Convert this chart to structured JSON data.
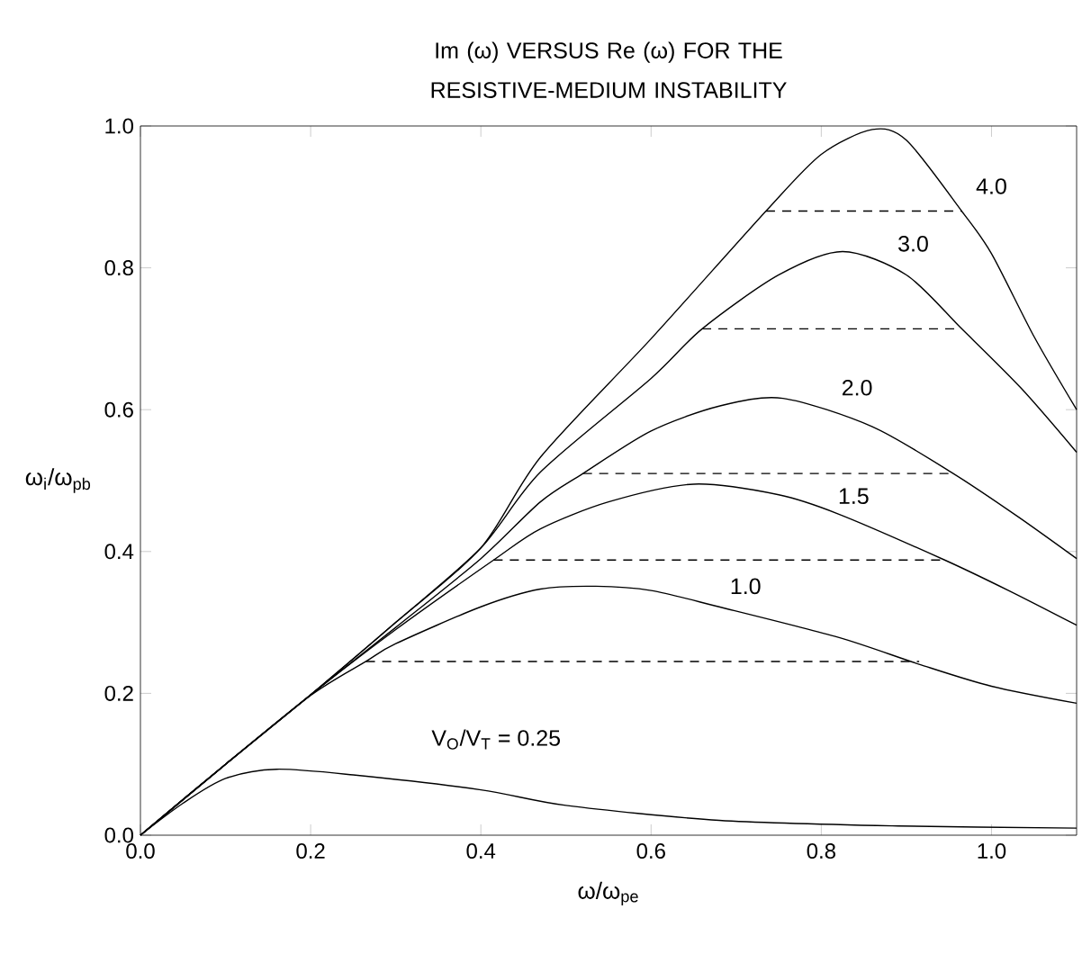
{
  "chart_data": {
    "type": "line",
    "title": "Im (ω) VERSUS Re (ω) FOR THE RESISTIVE-MEDIUM INSTABILITY",
    "xlabel": "ω/ω$_{pe}$",
    "ylabel": "ω$_{i}$/ω$_{pb}$",
    "xlim": [
      0,
      1.1
    ],
    "ylim": [
      0,
      1.0
    ],
    "xticks": [
      {
        "value": 0,
        "label": "0.0"
      },
      {
        "value": 0.2,
        "label": "0.2"
      },
      {
        "value": 0.4,
        "label": "0.4"
      },
      {
        "value": 0.6,
        "label": "0.6"
      },
      {
        "value": 0.8,
        "label": "0.8"
      },
      {
        "value": 1.0,
        "label": "1.0"
      }
    ],
    "yticks": [
      {
        "value": 0,
        "label": "0.0"
      },
      {
        "value": 0.2,
        "label": "0.2"
      },
      {
        "value": 0.4,
        "label": "0.4"
      },
      {
        "value": 0.6,
        "label": "0.6"
      },
      {
        "value": 0.8,
        "label": "0.8"
      },
      {
        "value": 1.0,
        "label": "1.0"
      }
    ],
    "marker": "none",
    "series": [
      {
        "name": "V$_{O}$/V$_{T}$ = 0.25",
        "color": "#000000",
        "line_style": "solid",
        "x": [
          0,
          0.05,
          0.1,
          0.16,
          0.25,
          0.4,
          0.5,
          0.68,
          0.89,
          1.1
        ],
        "values": [
          0,
          0.045,
          0.08,
          0.093,
          0.085,
          0.064,
          0.042,
          0.021,
          0.013,
          0.01
        ]
      },
      {
        "name": "1.0",
        "color": "#000000",
        "line_style": "solid",
        "x": [
          0,
          0.1,
          0.2,
          0.265,
          0.3,
          0.4,
          0.47,
          0.535,
          0.6,
          0.68,
          0.82,
          0.915,
          1.0,
          1.1
        ],
        "values": [
          0,
          0.1,
          0.197,
          0.245,
          0.27,
          0.322,
          0.347,
          0.351,
          0.345,
          0.322,
          0.279,
          0.241,
          0.21,
          0.186
        ]
      },
      {
        "name": "1.5",
        "color": "#000000",
        "line_style": "solid",
        "x": [
          0,
          0.1,
          0.2,
          0.3,
          0.415,
          0.47,
          0.55,
          0.65,
          0.75,
          0.82,
          0.945,
          1.02,
          1.1
        ],
        "values": [
          0,
          0.1,
          0.198,
          0.29,
          0.388,
          0.432,
          0.47,
          0.495,
          0.48,
          0.453,
          0.388,
          0.345,
          0.296
        ]
      },
      {
        "name": "2.0",
        "color": "#000000",
        "line_style": "solid",
        "x": [
          0,
          0.1,
          0.2,
          0.3,
          0.4,
          0.47,
          0.52,
          0.6,
          0.68,
          0.755,
          0.86,
          0.955,
          1.03,
          1.1
        ],
        "values": [
          0,
          0.1,
          0.198,
          0.293,
          0.39,
          0.47,
          0.51,
          0.57,
          0.605,
          0.616,
          0.576,
          0.51,
          0.45,
          0.39
        ]
      },
      {
        "name": "3.0",
        "color": "#000000",
        "line_style": "solid",
        "x": [
          0,
          0.1,
          0.2,
          0.3,
          0.4,
          0.47,
          0.6,
          0.66,
          0.75,
          0.825,
          0.9,
          0.965,
          1.035,
          1.1
        ],
        "values": [
          0,
          0.1,
          0.198,
          0.3,
          0.405,
          0.512,
          0.644,
          0.714,
          0.79,
          0.823,
          0.79,
          0.714,
          0.63,
          0.54
        ]
      },
      {
        "name": "4.0",
        "color": "#000000",
        "line_style": "solid",
        "x": [
          0,
          0.1,
          0.2,
          0.3,
          0.4,
          0.47,
          0.6,
          0.735,
          0.8,
          0.86,
          0.9,
          0.965,
          1.0,
          1.05,
          1.1
        ],
        "values": [
          0,
          0.1,
          0.198,
          0.3,
          0.405,
          0.533,
          0.7,
          0.88,
          0.96,
          0.995,
          0.98,
          0.88,
          0.82,
          0.703,
          0.6
        ]
      },
      {
        "color": "#000000",
        "line_style": "dashed",
        "x": [
          0.265,
          0.915
        ],
        "values": [
          0.245,
          0.245
        ]
      },
      {
        "color": "#000000",
        "line_style": "dashed",
        "x": [
          0.415,
          0.945
        ],
        "values": [
          0.388,
          0.388
        ]
      },
      {
        "color": "#000000",
        "line_style": "dashed",
        "x": [
          0.52,
          0.955
        ],
        "values": [
          0.51,
          0.51
        ]
      },
      {
        "color": "#000000",
        "line_style": "dashed",
        "x": [
          0.66,
          0.965
        ],
        "values": [
          0.714,
          0.714
        ]
      },
      {
        "color": "#000000",
        "line_style": "dashed",
        "x": [
          0.735,
          0.965
        ],
        "values": [
          0.88,
          0.88
        ]
      }
    ]
  }
}
